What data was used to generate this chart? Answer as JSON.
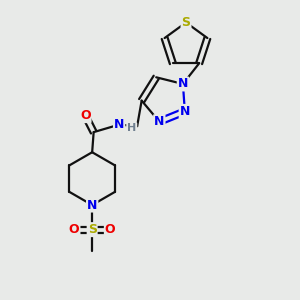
{
  "background_color": "#e8eae8",
  "atom_colors": {
    "C": "#000000",
    "H": "#708090",
    "N": "#0000ee",
    "O": "#ee0000",
    "S_thio": "#aaaa00",
    "S_sulf": "#cccc00"
  },
  "bond_color": "#111111",
  "bond_width": 1.6,
  "figsize": [
    3.0,
    3.0
  ],
  "dpi": 100
}
